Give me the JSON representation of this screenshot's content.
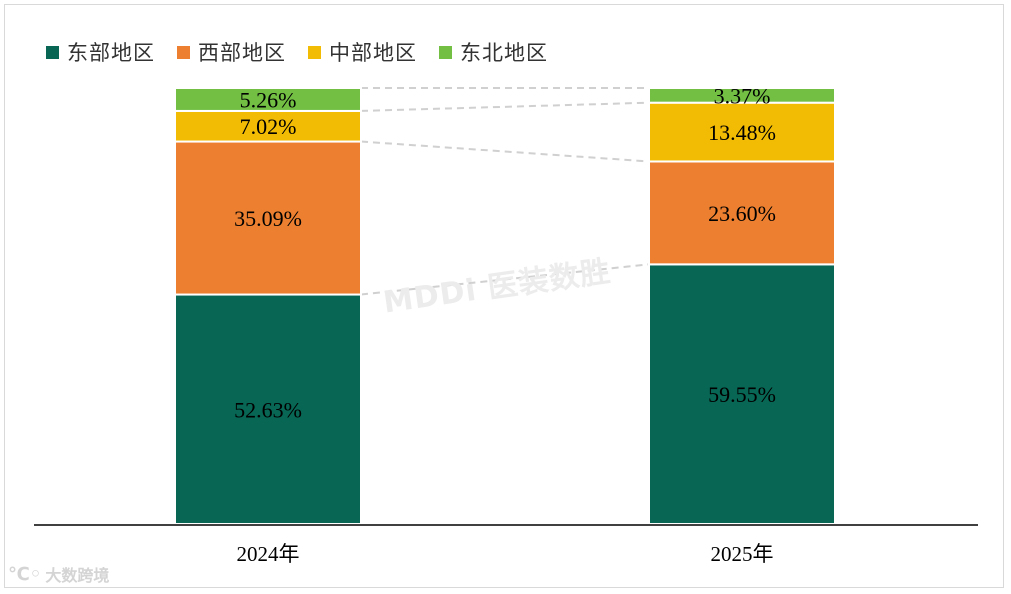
{
  "chart_data": {
    "type": "bar",
    "stacked": true,
    "percent_stacked": true,
    "categories": [
      "2024年",
      "2025年"
    ],
    "series": [
      {
        "name": "东部地区",
        "color": "#076654",
        "values": [
          52.63,
          59.55
        ],
        "labels": [
          "52.63%",
          "59.55%"
        ],
        "label_color": "#000000"
      },
      {
        "name": "西部地区",
        "color": "#ED8030",
        "values": [
          35.09,
          23.6
        ],
        "labels": [
          "35.09%",
          "23.60%"
        ],
        "label_color": "#000000"
      },
      {
        "name": "中部地区",
        "color": "#F2BB04",
        "values": [
          7.02,
          13.48
        ],
        "labels": [
          "7.02%",
          "13.48%"
        ],
        "label_color": "#000000"
      },
      {
        "name": "东北地区",
        "color": "#72BF44",
        "values": [
          5.26,
          3.37
        ],
        "labels": [
          "5.26%",
          "3.37%"
        ],
        "label_color": "#000000"
      }
    ],
    "ylim": [
      0,
      100
    ],
    "legend_position": "top-left",
    "series_connector_lines": true,
    "grid": false
  },
  "watermarks": {
    "center": "MDDi 医装数胜",
    "corner": "大数跨境"
  }
}
